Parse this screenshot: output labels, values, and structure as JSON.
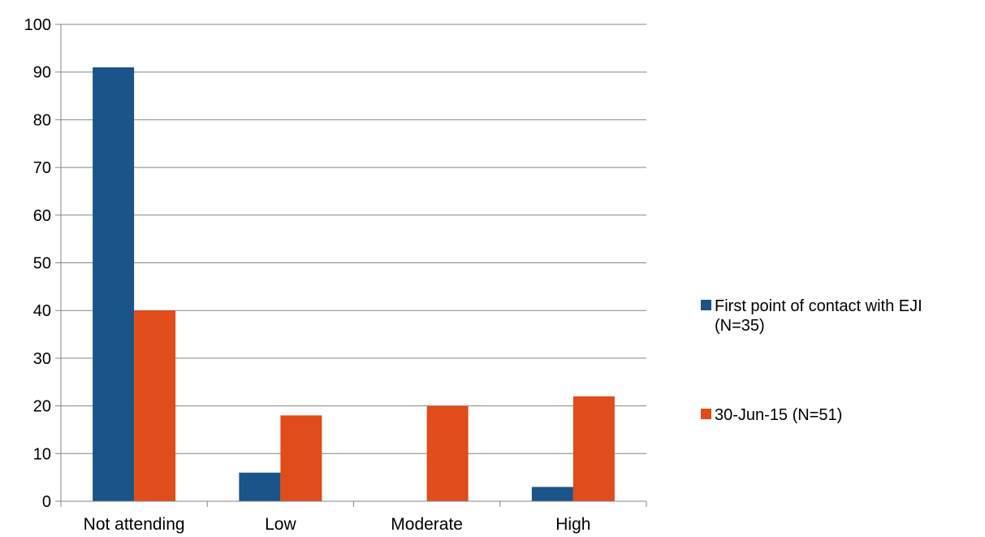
{
  "chart_data": {
    "type": "bar",
    "categories": [
      "Not attending",
      "Low",
      "Moderate",
      "High"
    ],
    "series": [
      {
        "name": "First point of contact with EJI (N=35)",
        "legend_lines": [
          "First point of contact with EJI",
          "(N=35)"
        ],
        "values": [
          91,
          6,
          0,
          3
        ],
        "color": "#1a5488"
      },
      {
        "name": "30-Jun-15 (N=51)",
        "legend_lines": [
          "30-Jun-15 (N=51)"
        ],
        "values": [
          40,
          18,
          20,
          22
        ],
        "color": "#e04c1a"
      }
    ],
    "ylim": [
      0,
      100
    ],
    "yticks": [
      0,
      10,
      20,
      30,
      40,
      50,
      60,
      70,
      80,
      90,
      100
    ],
    "grid": true,
    "legend_position": "right",
    "title": "",
    "xlabel": "",
    "ylabel": ""
  },
  "colors": {
    "gridline": "#868686",
    "axis": "#868686"
  }
}
